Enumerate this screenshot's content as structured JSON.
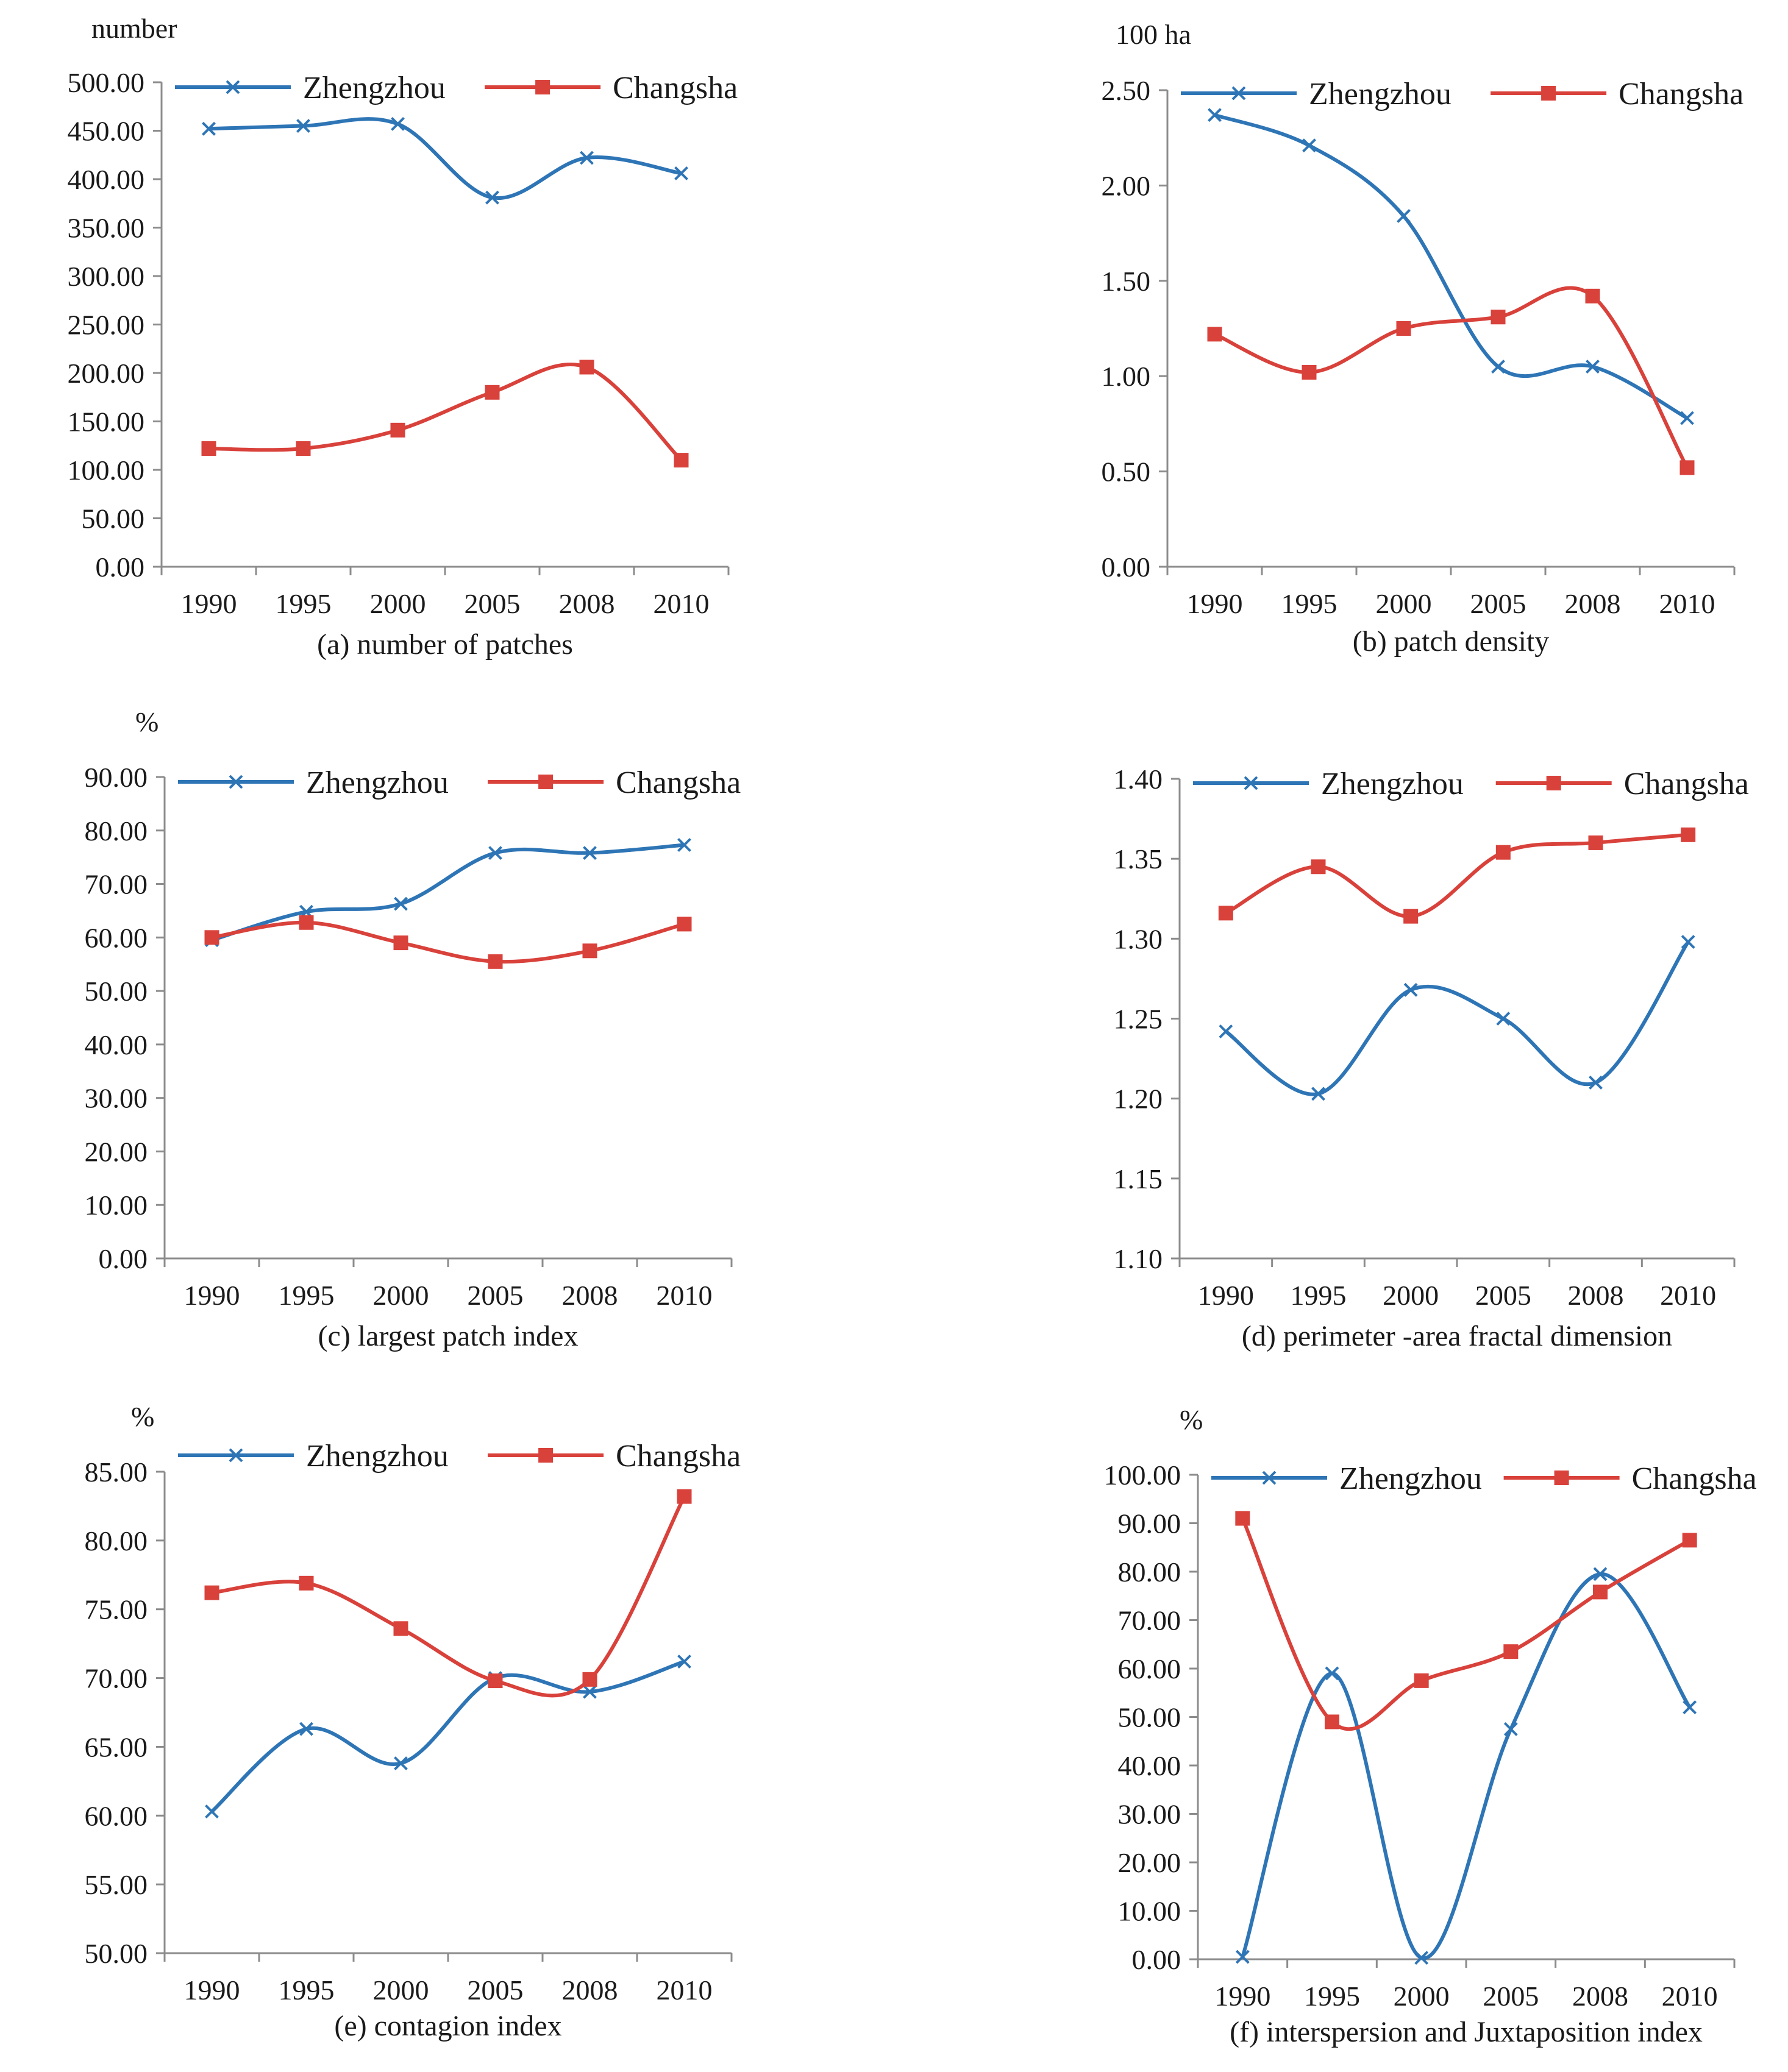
{
  "colors": {
    "zhengzhou": "#2e75b6",
    "changsha": "#d9413b"
  },
  "chart_data": [
    {
      "type": "line",
      "title": "(a) number of patches",
      "ylabel": "number",
      "x": [
        "1990",
        "1995",
        "2000",
        "2005",
        "2008",
        "2010"
      ],
      "ylim": [
        0,
        500
      ],
      "yticks": [
        "0.00",
        "50.00",
        "100.00",
        "150.00",
        "200.00",
        "250.00",
        "300.00",
        "350.00",
        "400.00",
        "450.00",
        "500.00"
      ],
      "legend": "top",
      "series": [
        {
          "name": "Zhengzhou",
          "marker": "x",
          "values": [
            452,
            455,
            457,
            381,
            422,
            406
          ]
        },
        {
          "name": "Changsha",
          "marker": "square",
          "values": [
            122,
            122,
            141,
            180,
            206,
            110
          ]
        }
      ]
    },
    {
      "type": "line",
      "title": "(b) patch density",
      "ylabel": "100 ha",
      "x": [
        "1990",
        "1995",
        "2000",
        "2005",
        "2008",
        "2010"
      ],
      "ylim": [
        0,
        2.5
      ],
      "yticks": [
        "0.00",
        "0.50",
        "1.00",
        "1.50",
        "2.00",
        "2.50"
      ],
      "legend": "top",
      "series": [
        {
          "name": "Zhengzhou",
          "marker": "x",
          "values": [
            2.37,
            2.21,
            1.84,
            1.05,
            1.05,
            0.78
          ]
        },
        {
          "name": "Changsha",
          "marker": "square",
          "values": [
            1.22,
            1.02,
            1.25,
            1.31,
            1.42,
            0.52
          ]
        }
      ]
    },
    {
      "type": "line",
      "title": "(c) largest patch index",
      "ylabel": "%",
      "x": [
        "1990",
        "1995",
        "2000",
        "2005",
        "2008",
        "2010"
      ],
      "ylim": [
        0,
        90
      ],
      "yticks": [
        "0.00",
        "10.00",
        "20.00",
        "30.00",
        "40.00",
        "50.00",
        "60.00",
        "70.00",
        "80.00",
        "90.00"
      ],
      "legend": "top",
      "series": [
        {
          "name": "Zhengzhou",
          "marker": "x",
          "values": [
            59.5,
            64.8,
            66.3,
            75.8,
            75.8,
            77.3
          ]
        },
        {
          "name": "Changsha",
          "marker": "square",
          "values": [
            60.0,
            62.8,
            59.0,
            55.5,
            57.5,
            62.5
          ]
        }
      ]
    },
    {
      "type": "line",
      "title": "(d) perimeter -area fractal dimension",
      "ylabel": "",
      "x": [
        "1990",
        "1995",
        "2000",
        "2005",
        "2008",
        "2010"
      ],
      "ylim": [
        1.1,
        1.4
      ],
      "yticks": [
        "1.10",
        "1.15",
        "1.20",
        "1.25",
        "1.30",
        "1.35",
        "1.40"
      ],
      "legend": "top",
      "series": [
        {
          "name": "Zhengzhou",
          "marker": "x",
          "values": [
            1.242,
            1.203,
            1.268,
            1.25,
            1.21,
            1.298
          ]
        },
        {
          "name": "Changsha",
          "marker": "square",
          "values": [
            1.316,
            1.345,
            1.314,
            1.354,
            1.36,
            1.365
          ]
        }
      ]
    },
    {
      "type": "line",
      "title": "(e) contagion index",
      "ylabel": "%",
      "x": [
        "1990",
        "1995",
        "2000",
        "2005",
        "2008",
        "2010"
      ],
      "ylim": [
        50,
        85
      ],
      "yticks": [
        "50.00",
        "55.00",
        "60.00",
        "65.00",
        "70.00",
        "75.00",
        "80.00",
        "85.00"
      ],
      "legend": "top",
      "series": [
        {
          "name": "Zhengzhou",
          "marker": "x",
          "values": [
            60.3,
            66.3,
            63.8,
            70.0,
            69.0,
            71.2
          ]
        },
        {
          "name": "Changsha",
          "marker": "square",
          "values": [
            76.2,
            76.9,
            73.6,
            69.8,
            69.9,
            83.2
          ]
        }
      ]
    },
    {
      "type": "line",
      "title": "(f) interspersion and Juxtaposition index",
      "ylabel": "%",
      "x": [
        "1990",
        "1995",
        "2000",
        "2005",
        "2008",
        "2010"
      ],
      "ylim": [
        0,
        100
      ],
      "yticks": [
        "0.00",
        "10.00",
        "20.00",
        "30.00",
        "40.00",
        "50.00",
        "60.00",
        "70.00",
        "80.00",
        "90.00",
        "100.00"
      ],
      "legend": "top",
      "series": [
        {
          "name": "Zhengzhou",
          "marker": "x",
          "values": [
            0.5,
            59.0,
            0.3,
            47.5,
            79.5,
            52.0
          ]
        },
        {
          "name": "Changsha",
          "marker": "square",
          "values": [
            91.0,
            49.0,
            57.5,
            63.5,
            75.8,
            86.5
          ]
        }
      ]
    }
  ]
}
